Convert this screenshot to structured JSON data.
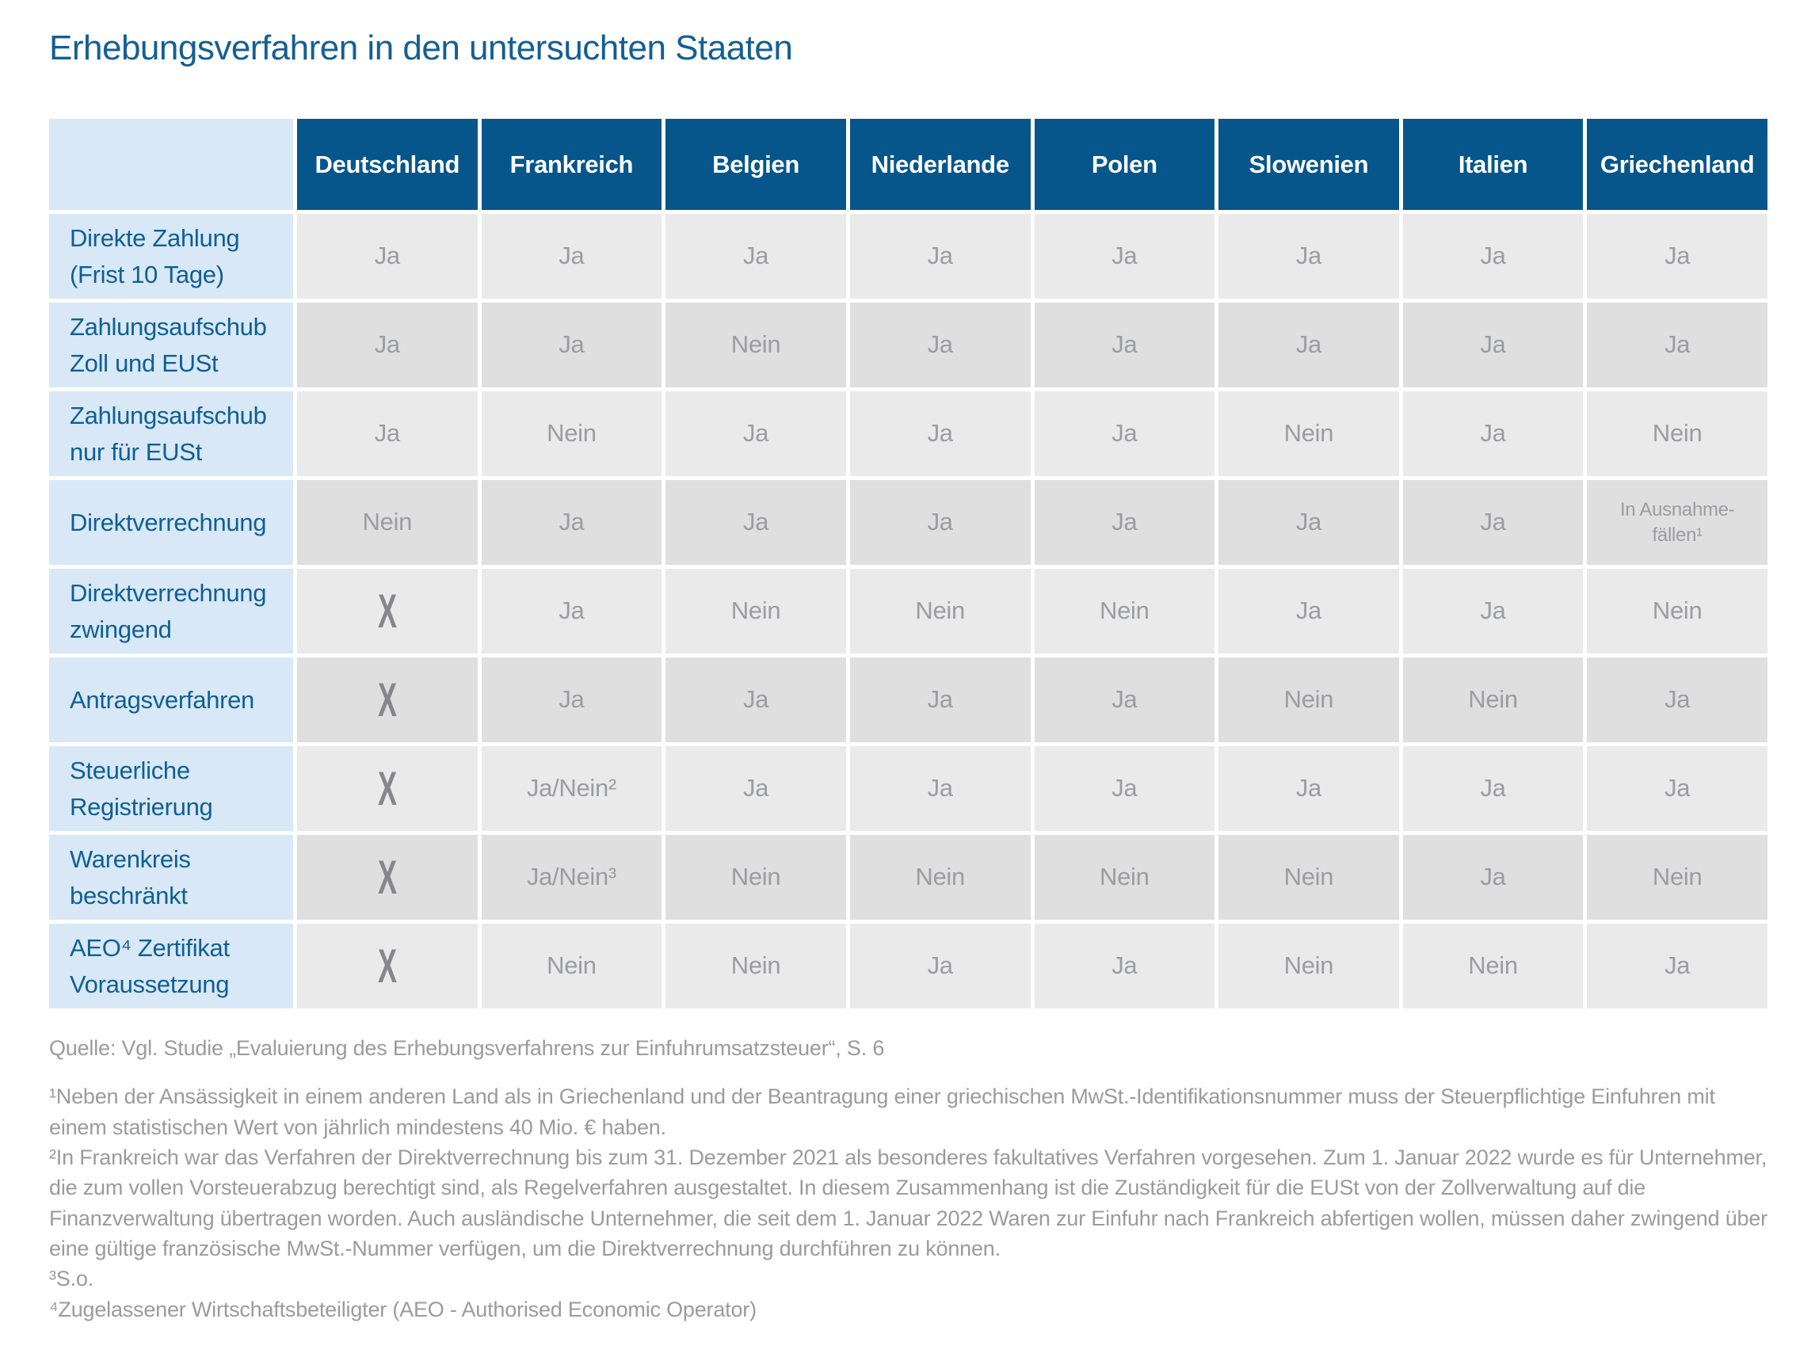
{
  "title": "Erhebungsverfahren in den untersuchten Staaten",
  "table": {
    "corner_label": "",
    "columns": [
      "Deutschland",
      "Frankreich",
      "Belgien",
      "Niederlande",
      "Polen",
      "Slowenien",
      "Italien",
      "Griechenland"
    ],
    "rows": [
      {
        "label": "Direkte Zahlung\n(Frist 10 Tage)",
        "values": [
          "Ja",
          "Ja",
          "Ja",
          "Ja",
          "Ja",
          "Ja",
          "Ja",
          "Ja"
        ]
      },
      {
        "label": "Zahlungsaufschub\nZoll und EUSt",
        "values": [
          "Ja",
          "Ja",
          "Nein",
          "Ja",
          "Ja",
          "Ja",
          "Ja",
          "Ja"
        ]
      },
      {
        "label": "Zahlungsaufschub\nnur für EUSt",
        "values": [
          "Ja",
          "Nein",
          "Ja",
          "Ja",
          "Ja",
          "Nein",
          "Ja",
          "Nein"
        ]
      },
      {
        "label": "Direktverrechnung",
        "values": [
          "Nein",
          "Ja",
          "Ja",
          "Ja",
          "Ja",
          "Ja",
          "Ja",
          "In Ausnahme-\nfällen¹"
        ]
      },
      {
        "label": "Direktverrechnung\nzwingend",
        "values": [
          "X",
          "Ja",
          "Nein",
          "Nein",
          "Nein",
          "Ja",
          "Ja",
          "Nein"
        ]
      },
      {
        "label": "Antragsverfahren",
        "values": [
          "X",
          "Ja",
          "Ja",
          "Ja",
          "Ja",
          "Nein",
          "Nein",
          "Ja"
        ]
      },
      {
        "label": "Steuerliche\nRegistrierung",
        "values": [
          "X",
          "Ja/Nein²",
          "Ja",
          "Ja",
          "Ja",
          "Ja",
          "Ja",
          "Ja"
        ]
      },
      {
        "label": "Warenkreis\nbeschränkt",
        "values": [
          "X",
          "Ja/Nein³",
          "Nein",
          "Nein",
          "Nein",
          "Nein",
          "Ja",
          "Nein"
        ]
      },
      {
        "label": "AEO⁴ Zertifikat\nVoraussetzung",
        "values": [
          "X",
          "Nein",
          "Nein",
          "Ja",
          "Ja",
          "Nein",
          "Nein",
          "Ja"
        ]
      }
    ]
  },
  "footer": {
    "source": "Quelle: Vgl. Studie „Evaluierung des Erhebungsverfahrens zur Einfuhrumsatzsteuer“, S. 6",
    "footnotes": [
      "¹Neben der Ansässigkeit in einem anderen Land als in Griechenland und der Beantragung einer griechischen MwSt.-Identifikationsnummer muss der Steuerpflichtige Einfuhren mit einem statistischen Wert von jährlich mindestens 40 Mio. € haben.",
      "²In Frankreich war das Verfahren der Direktverrechnung bis zum 31. Dezember 2021 als besonderes fakultatives Verfahren vorgesehen. Zum 1. Januar 2022 wurde es für Unternehmer, die zum vollen Vorsteuerabzug berechtigt sind, als Regelverfahren ausgestaltet. In diesem Zusammenhang ist die Zuständigkeit für die EUSt von der Zollverwaltung auf die Finanzverwaltung übertragen worden. Auch ausländische Unternehmer, die seit dem 1. Januar 2022 Waren zur Einfuhr nach Frankreich abfertigen wollen, müssen daher zwingend über eine gültige französische MwSt.-Nummer verfügen, um die Direktverrechnung durchführen zu können.",
      "³S.o.",
      "⁴Zugelassener Wirtschaftsbeteiligter (AEO - Authorised Economic Operator)"
    ]
  },
  "colors": {
    "title_text": "#135F93",
    "header_bg": "#06568C",
    "header_text": "#FFFFFF",
    "label_bg": "#D8E8F6",
    "label_text": "#0F5F94",
    "cell_bg_odd": "#EAEAEB",
    "cell_bg_even": "#DFDFE0",
    "cell_text": "#9C9DA0",
    "x_mark": "#87878B",
    "footnote_text": "#9B9B9D"
  }
}
